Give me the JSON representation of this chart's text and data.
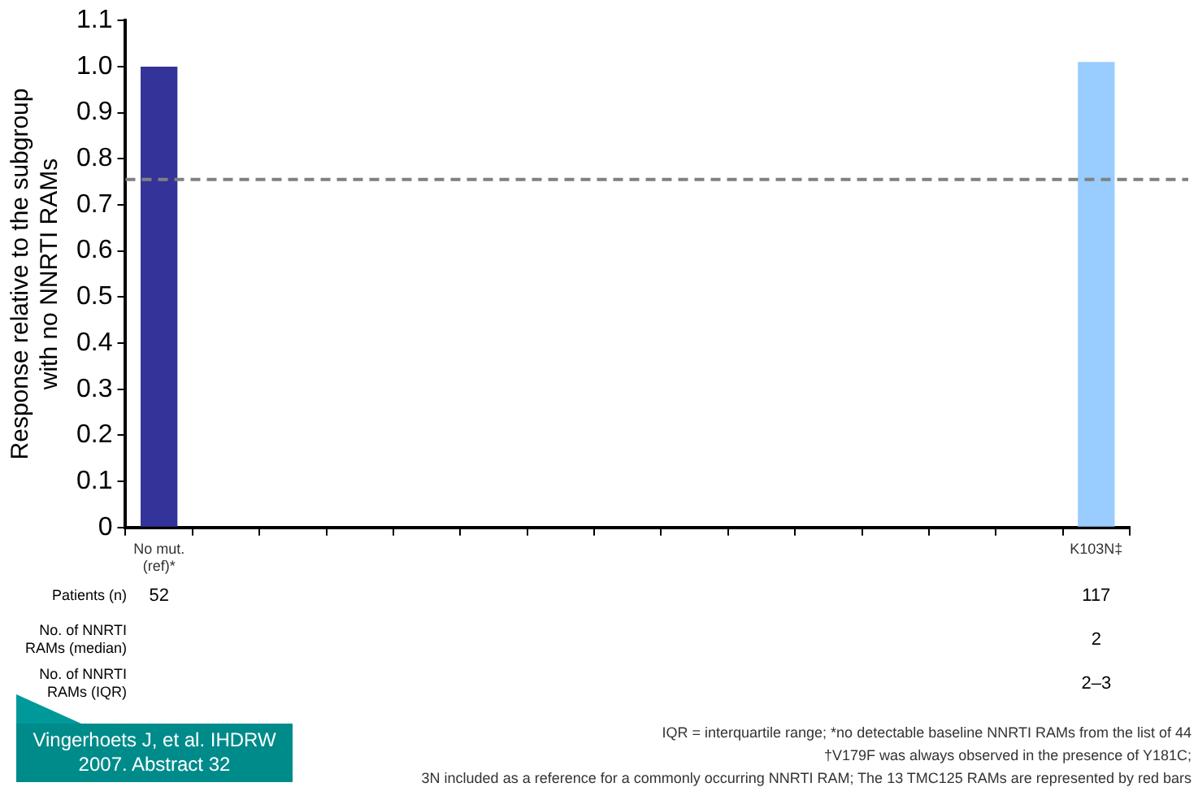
{
  "chart_data": {
    "type": "bar",
    "ylabel": "Response relative to the subgroup with no NNRTI RAMs",
    "categories": [
      "No mut. (ref)*",
      null,
      null,
      null,
      null,
      null,
      null,
      null,
      null,
      null,
      null,
      null,
      null,
      null,
      "K103N‡"
    ],
    "values": [
      1.0,
      null,
      null,
      null,
      null,
      null,
      null,
      null,
      null,
      null,
      null,
      null,
      null,
      null,
      1.01
    ],
    "colors": [
      "#333399",
      null,
      null,
      null,
      null,
      null,
      null,
      null,
      null,
      null,
      null,
      null,
      null,
      null,
      "#99ccff"
    ],
    "ylim": [
      0,
      1.1
    ],
    "yticks": [
      0,
      {
        "value": 0.1,
        "label": "0.1"
      },
      {
        "value": 0.2,
        "label": "0.2"
      },
      {
        "value": 0.3,
        "label": "0.3"
      },
      {
        "value": 0.4,
        "label": "0.4"
      },
      {
        "value": 0.5,
        "label": "0.5"
      },
      {
        "value": 0.6,
        "label": "0.6"
      },
      {
        "value": 0.7,
        "label": "0.7"
      },
      {
        "value": 0.8,
        "label": "0.8"
      },
      {
        "value": 0.9,
        "label": "0.9"
      },
      {
        "value": 1,
        "label": "1.0"
      },
      {
        "value": 1.1,
        "label": "1.1"
      }
    ],
    "ref_lines": [
      {
        "axis": "y",
        "value": 0.755,
        "color": "#808080",
        "line_style": "dashed"
      }
    ],
    "grid": false,
    "legend": false,
    "annotations": [
      "Patients (n)",
      "52",
      "117",
      "No. of NNRTI RAMs (median)",
      "2",
      "No. of NNRTI RAMs (IQR)",
      "2–3",
      "Vingerhoets J, et al. IHDRW 2007. Abstract 32",
      "IQR = interquartile range; *no detectable baseline NNRTI RAMs from the list of 44",
      "†V179F was always observed in the presence of Y181C;",
      "3N included as a reference for a commonly occurring NNRTI RAM; The 13 TMC125 RAMs are represented by red bars"
    ]
  }
}
